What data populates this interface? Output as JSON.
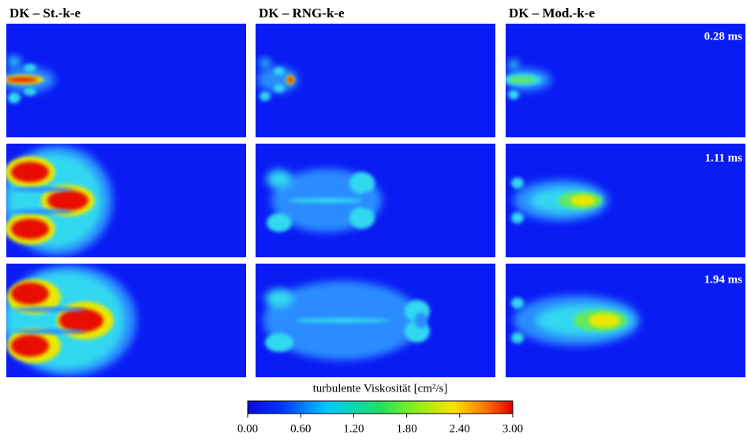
{
  "columns": [
    "DK – St.-k-e",
    "DK – RNG-k-e",
    "DK – Mod.-k-e"
  ],
  "times": [
    "0.28 ms",
    "1.11 ms",
    "1.94 ms"
  ],
  "colorbar": {
    "label": "turbulente Viskosität [cm²/s]",
    "ticks": [
      "0.00",
      "0.60",
      "1.20",
      "1.80",
      "2.40",
      "3.00"
    ]
  }
}
